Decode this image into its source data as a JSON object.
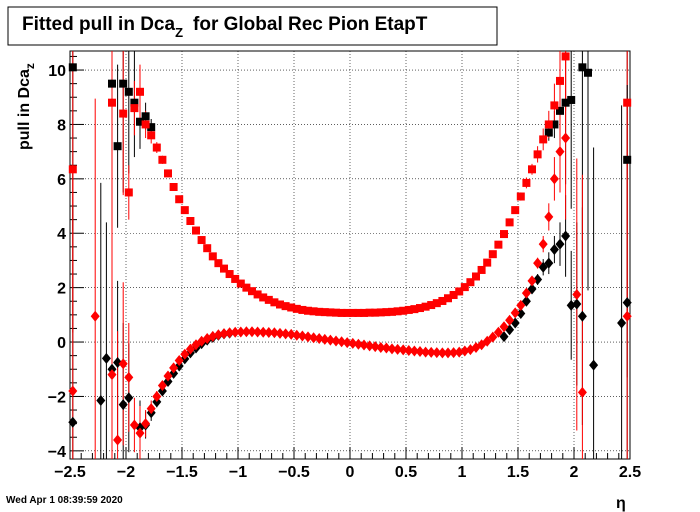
{
  "chart_data": {
    "type": "scatter",
    "title": "Fitted pull in Dca",
    "title_sub": "Z",
    "title_suffix": "for Global Rec Pion EtapT",
    "xlabel": "η",
    "ylabel": "pull in Dca",
    "ylabel_sub": "z",
    "xlim": [
      -2.5,
      2.5
    ],
    "ylim": [
      -4.3,
      10.7
    ],
    "grid": true,
    "x_ticks": [
      "−2.5",
      "−2",
      "−1.5",
      "−1",
      "−0.5",
      "0",
      "0.5",
      "1",
      "1.5",
      "2",
      "2.5"
    ],
    "y_ticks": [
      "−4",
      "−2",
      "0",
      "2",
      "4",
      "6",
      "8",
      "10"
    ],
    "series": [
      {
        "marker": "square",
        "color": "#000000",
        "points": [
          [
            -2.475,
            10.1,
            6.0
          ],
          [
            -2.125,
            9.5,
            8.0
          ],
          [
            -2.075,
            7.2,
            3.0
          ],
          [
            -2.025,
            9.5,
            4.0
          ],
          [
            -1.975,
            9.2,
            3.0
          ],
          [
            -1.925,
            8.8,
            2.0
          ],
          [
            -1.875,
            8.1,
            1.0
          ],
          [
            -1.825,
            8.3,
            0.5
          ],
          [
            -1.775,
            7.9,
            0.3
          ],
          [
            1.775,
            7.7,
            0.3
          ],
          [
            1.825,
            8.0,
            0.5
          ],
          [
            1.875,
            8.5,
            1.0
          ],
          [
            1.925,
            8.8,
            3.0
          ],
          [
            1.975,
            8.9,
            4.0
          ],
          [
            2.075,
            10.1,
            8.0
          ],
          [
            2.125,
            9.9,
            8.0
          ],
          [
            2.475,
            6.7,
            8.0
          ]
        ]
      },
      {
        "marker": "square",
        "color": "#ff0000",
        "points": [
          [
            -2.475,
            6.35,
            6.0
          ],
          [
            -2.125,
            8.8,
            8.0
          ],
          [
            -2.025,
            8.4,
            3.0
          ],
          [
            -1.975,
            5.5,
            1.0
          ],
          [
            -1.925,
            8.6,
            1.0
          ],
          [
            -1.875,
            9.2,
            1.0
          ],
          [
            -1.825,
            8.0,
            0.5
          ],
          [
            -1.775,
            7.6,
            0.3
          ],
          [
            -1.725,
            7.15,
            0.2
          ],
          [
            -1.675,
            6.7,
            0.15
          ],
          [
            -1.625,
            6.2,
            0.1
          ],
          [
            -1.575,
            5.7,
            0.1
          ],
          [
            -1.525,
            5.25,
            0
          ],
          [
            -1.475,
            4.85,
            0
          ],
          [
            -1.425,
            4.45,
            0
          ],
          [
            -1.375,
            4.1,
            0
          ],
          [
            -1.325,
            3.75,
            0
          ],
          [
            -1.275,
            3.45,
            0
          ],
          [
            -1.225,
            3.15,
            0
          ],
          [
            -1.175,
            2.9,
            0
          ],
          [
            -1.125,
            2.7,
            0
          ],
          [
            -1.075,
            2.5,
            0
          ],
          [
            -1.025,
            2.32,
            0
          ],
          [
            -0.975,
            2.15,
            0
          ],
          [
            -0.925,
            2.0,
            0
          ],
          [
            -0.875,
            1.87,
            0
          ],
          [
            -0.825,
            1.75,
            0
          ],
          [
            -0.775,
            1.64,
            0
          ],
          [
            -0.725,
            1.55,
            0
          ],
          [
            -0.675,
            1.46,
            0
          ],
          [
            -0.625,
            1.38,
            0
          ],
          [
            -0.575,
            1.32,
            0
          ],
          [
            -0.525,
            1.27,
            0
          ],
          [
            -0.475,
            1.22,
            0
          ],
          [
            -0.425,
            1.18,
            0
          ],
          [
            -0.375,
            1.15,
            0
          ],
          [
            -0.325,
            1.13,
            0
          ],
          [
            -0.275,
            1.11,
            0
          ],
          [
            -0.225,
            1.1,
            0
          ],
          [
            -0.175,
            1.09,
            0
          ],
          [
            -0.125,
            1.08,
            0
          ],
          [
            -0.075,
            1.07,
            0
          ],
          [
            -0.025,
            1.07,
            0
          ],
          [
            0.025,
            1.07,
            0
          ],
          [
            0.075,
            1.07,
            0
          ],
          [
            0.125,
            1.07,
            0
          ],
          [
            0.175,
            1.08,
            0
          ],
          [
            0.225,
            1.08,
            0
          ],
          [
            0.275,
            1.09,
            0
          ],
          [
            0.325,
            1.1,
            0
          ],
          [
            0.375,
            1.11,
            0
          ],
          [
            0.425,
            1.13,
            0
          ],
          [
            0.475,
            1.15,
            0
          ],
          [
            0.525,
            1.18,
            0
          ],
          [
            0.575,
            1.21,
            0
          ],
          [
            0.625,
            1.25,
            0
          ],
          [
            0.675,
            1.3,
            0
          ],
          [
            0.725,
            1.36,
            0
          ],
          [
            0.775,
            1.43,
            0
          ],
          [
            0.825,
            1.51,
            0
          ],
          [
            0.875,
            1.61,
            0
          ],
          [
            0.925,
            1.73,
            0
          ],
          [
            0.975,
            1.86,
            0
          ],
          [
            1.025,
            2.02,
            0
          ],
          [
            1.075,
            2.2,
            0
          ],
          [
            1.125,
            2.41,
            0
          ],
          [
            1.175,
            2.65,
            0
          ],
          [
            1.225,
            2.92,
            0
          ],
          [
            1.275,
            3.23,
            0
          ],
          [
            1.325,
            3.58,
            0
          ],
          [
            1.375,
            3.97,
            0
          ],
          [
            1.425,
            4.4,
            0.1
          ],
          [
            1.475,
            4.85,
            0.1
          ],
          [
            1.525,
            5.35,
            0.15
          ],
          [
            1.575,
            5.85,
            0.2
          ],
          [
            1.625,
            6.35,
            0.2
          ],
          [
            1.675,
            6.9,
            0.3
          ],
          [
            1.725,
            7.45,
            0.4
          ],
          [
            1.775,
            8.0,
            0.5
          ],
          [
            1.825,
            8.7,
            0.8
          ],
          [
            1.875,
            9.6,
            1.2
          ],
          [
            1.925,
            10.5,
            2.0
          ],
          [
            2.475,
            8.8,
            8.0
          ]
        ]
      },
      {
        "marker": "diamond",
        "color": "#000000",
        "points": [
          [
            -2.475,
            -2.95,
            8.0
          ],
          [
            -2.225,
            -2.15,
            8.0
          ],
          [
            -2.175,
            -0.6,
            5.0
          ],
          [
            -2.125,
            -1.0,
            4.0
          ],
          [
            -2.075,
            -0.75,
            3.0
          ],
          [
            -2.025,
            -2.3,
            3.0
          ],
          [
            -1.975,
            -2.05,
            2.0
          ],
          [
            -1.875,
            -3.15,
            1.0
          ],
          [
            -1.825,
            -3.05,
            0.5
          ],
          [
            -1.775,
            -2.6,
            0.3
          ],
          [
            -1.725,
            -2.2,
            0.2
          ],
          [
            -1.675,
            -1.8,
            0.1
          ],
          [
            -1.625,
            -1.45,
            0
          ],
          [
            -1.575,
            -1.15,
            0
          ],
          [
            -1.525,
            -0.88,
            0
          ],
          [
            -1.475,
            -0.62,
            0
          ],
          [
            -1.425,
            -0.4,
            0
          ],
          [
            -1.375,
            -0.22,
            0
          ],
          [
            -1.325,
            -0.06,
            0
          ],
          [
            -1.275,
            0.07,
            0
          ],
          [
            -1.225,
            0.17,
            0
          ],
          [
            -1.175,
            0.25,
            0
          ],
          [
            -1.125,
            0.3,
            0
          ],
          [
            -1.075,
            0.33,
            0
          ],
          [
            1.375,
            0.2,
            0
          ],
          [
            1.425,
            0.45,
            0
          ],
          [
            1.475,
            0.7,
            0
          ],
          [
            1.525,
            1.05,
            0.1
          ],
          [
            1.575,
            1.5,
            0.1
          ],
          [
            1.625,
            1.95,
            0.15
          ],
          [
            1.675,
            2.3,
            0.2
          ],
          [
            1.725,
            2.75,
            0.3
          ],
          [
            1.775,
            2.9,
            0.4
          ],
          [
            1.825,
            3.4,
            0.5
          ],
          [
            1.875,
            3.6,
            0.8
          ],
          [
            1.925,
            3.9,
            1.5
          ],
          [
            1.975,
            1.35,
            2.0
          ],
          [
            2.025,
            1.4,
            3.0
          ],
          [
            2.075,
            0.95,
            4.0
          ],
          [
            2.175,
            -0.85,
            8.0
          ],
          [
            2.425,
            0.7,
            8.0
          ],
          [
            2.475,
            1.45,
            8.0
          ]
        ]
      },
      {
        "marker": "diamond",
        "color": "#ff0000",
        "points": [
          [
            -2.475,
            -1.8,
            8.0
          ],
          [
            -2.275,
            0.95,
            8.0
          ],
          [
            -2.125,
            -1.2,
            5.0
          ],
          [
            -2.075,
            -3.6,
            4.0
          ],
          [
            -2.025,
            -0.8,
            3.0
          ],
          [
            -1.975,
            -1.3,
            2.0
          ],
          [
            -1.925,
            -3.05,
            1.0
          ],
          [
            -1.875,
            -3.35,
            1.0
          ],
          [
            -1.825,
            -3.0,
            0.5
          ],
          [
            -1.775,
            -2.45,
            0.3
          ],
          [
            -1.725,
            -2.0,
            0.2
          ],
          [
            -1.675,
            -1.6,
            0.1
          ],
          [
            -1.625,
            -1.25,
            0
          ],
          [
            -1.575,
            -0.95,
            0
          ],
          [
            -1.525,
            -0.68,
            0
          ],
          [
            -1.475,
            -0.45,
            0
          ],
          [
            -1.425,
            -0.26,
            0
          ],
          [
            -1.375,
            -0.1,
            0
          ],
          [
            -1.325,
            0.03,
            0
          ],
          [
            -1.275,
            0.13,
            0
          ],
          [
            -1.225,
            0.21,
            0
          ],
          [
            -1.175,
            0.27,
            0
          ],
          [
            -1.125,
            0.31,
            0
          ],
          [
            -1.075,
            0.34,
            0
          ],
          [
            -1.025,
            0.36,
            0
          ],
          [
            -0.975,
            0.37,
            0
          ],
          [
            -0.925,
            0.38,
            0
          ],
          [
            -0.875,
            0.38,
            0
          ],
          [
            -0.825,
            0.37,
            0
          ],
          [
            -0.775,
            0.36,
            0
          ],
          [
            -0.725,
            0.35,
            0
          ],
          [
            -0.675,
            0.34,
            0
          ],
          [
            -0.625,
            0.32,
            0
          ],
          [
            -0.575,
            0.3,
            0
          ],
          [
            -0.525,
            0.28,
            0
          ],
          [
            -0.475,
            0.25,
            0
          ],
          [
            -0.425,
            0.22,
            0
          ],
          [
            -0.375,
            0.19,
            0
          ],
          [
            -0.325,
            0.16,
            0
          ],
          [
            -0.275,
            0.13,
            0
          ],
          [
            -0.225,
            0.1,
            0
          ],
          [
            -0.175,
            0.07,
            0
          ],
          [
            -0.125,
            0.04,
            0
          ],
          [
            -0.075,
            0.01,
            0
          ],
          [
            -0.025,
            -0.02,
            0
          ],
          [
            0.025,
            -0.05,
            0
          ],
          [
            0.075,
            -0.08,
            0
          ],
          [
            0.125,
            -0.11,
            0
          ],
          [
            0.175,
            -0.14,
            0
          ],
          [
            0.225,
            -0.17,
            0
          ],
          [
            0.275,
            -0.2,
            0
          ],
          [
            0.325,
            -0.22,
            0
          ],
          [
            0.375,
            -0.25,
            0
          ],
          [
            0.425,
            -0.27,
            0
          ],
          [
            0.475,
            -0.29,
            0
          ],
          [
            0.525,
            -0.31,
            0
          ],
          [
            0.575,
            -0.33,
            0
          ],
          [
            0.625,
            -0.35,
            0
          ],
          [
            0.675,
            -0.37,
            0
          ],
          [
            0.725,
            -0.38,
            0
          ],
          [
            0.775,
            -0.39,
            0
          ],
          [
            0.825,
            -0.4,
            0
          ],
          [
            0.875,
            -0.4,
            0
          ],
          [
            0.925,
            -0.39,
            0
          ],
          [
            0.975,
            -0.37,
            0
          ],
          [
            1.025,
            -0.33,
            0
          ],
          [
            1.075,
            -0.28,
            0
          ],
          [
            1.125,
            -0.2,
            0
          ],
          [
            1.175,
            -0.1,
            0
          ],
          [
            1.225,
            0.03,
            0
          ],
          [
            1.275,
            0.18,
            0
          ],
          [
            1.325,
            0.36,
            0
          ],
          [
            1.375,
            0.56,
            0
          ],
          [
            1.425,
            0.8,
            0
          ],
          [
            1.475,
            1.07,
            0
          ],
          [
            1.525,
            1.35,
            0.1
          ],
          [
            1.575,
            1.8,
            0.1
          ],
          [
            1.625,
            2.25,
            0.15
          ],
          [
            1.675,
            2.9,
            0.2
          ],
          [
            1.725,
            3.6,
            0.3
          ],
          [
            1.775,
            4.6,
            0.5
          ],
          [
            1.825,
            6.0,
            0.8
          ],
          [
            1.875,
            7.0,
            1.5
          ],
          [
            1.925,
            7.5,
            3.0
          ],
          [
            2.025,
            1.75,
            5.0
          ],
          [
            2.075,
            -1.85,
            8.0
          ],
          [
            2.475,
            0.95,
            8.0
          ]
        ]
      }
    ]
  },
  "footer": {
    "timestamp": "Wed Apr  1 08:39:59 2020"
  }
}
